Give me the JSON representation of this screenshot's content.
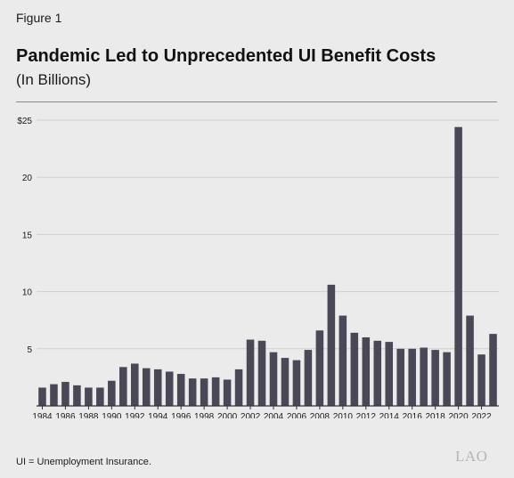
{
  "figure_label": "Figure 1",
  "note": "UI = Unemployment Insurance.",
  "logo_text": "LAO",
  "colors": {
    "bar": "#4a4857",
    "background": "#ebebeb",
    "grid": "#cfcfcf",
    "axis": "#333333"
  },
  "chart_data": {
    "type": "bar",
    "title": "Pandemic Led to Unprecedented UI Benefit Costs",
    "subtitle": "(In Billions)",
    "xlabel": "",
    "ylabel": "",
    "ylim": [
      0,
      25
    ],
    "yticks": [
      0,
      5,
      10,
      15,
      20,
      25
    ],
    "ytick_labels": [
      "",
      "5",
      "10",
      "15",
      "20",
      "$25"
    ],
    "xtick_labels": [
      "1984",
      "1986",
      "1988",
      "1990",
      "1992",
      "1994",
      "1996",
      "1998",
      "2000",
      "2002",
      "2004",
      "2006",
      "2008",
      "2010",
      "2012",
      "2014",
      "2016",
      "2018",
      "2020",
      "2022"
    ],
    "grid": true,
    "categories": [
      "1984",
      "1985",
      "1986",
      "1987",
      "1988",
      "1989",
      "1990",
      "1991",
      "1992",
      "1993",
      "1994",
      "1995",
      "1996",
      "1997",
      "1998",
      "1999",
      "2000",
      "2001",
      "2002",
      "2003",
      "2004",
      "2005",
      "2006",
      "2007",
      "2008",
      "2009",
      "2010",
      "2011",
      "2012",
      "2013",
      "2014",
      "2015",
      "2016",
      "2017",
      "2018",
      "2019",
      "2020",
      "2021",
      "2022",
      "2023"
    ],
    "values": [
      1.6,
      1.9,
      2.1,
      1.8,
      1.6,
      1.6,
      2.2,
      3.4,
      3.7,
      3.3,
      3.2,
      3.0,
      2.8,
      2.4,
      2.4,
      2.5,
      2.3,
      3.2,
      5.8,
      5.7,
      4.7,
      4.2,
      4.0,
      4.9,
      6.6,
      10.6,
      7.9,
      6.4,
      6.0,
      5.7,
      5.6,
      5.0,
      5.0,
      5.1,
      4.9,
      4.7,
      24.4,
      7.9,
      4.5,
      6.3
    ]
  }
}
